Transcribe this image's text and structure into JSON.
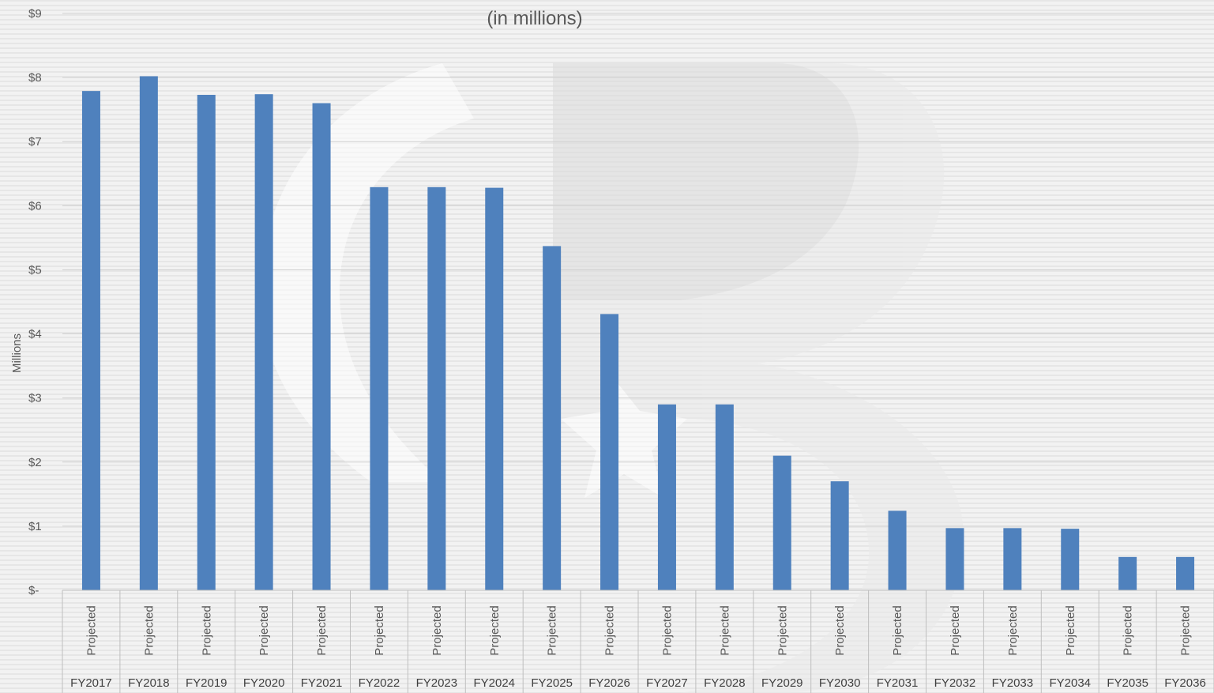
{
  "chart_data": {
    "type": "bar",
    "title": "(in millions)",
    "ylabel": "Millions",
    "xlabel": "",
    "ylim": [
      0,
      9
    ],
    "yticks": [
      {
        "value": 0,
        "label": "$-"
      },
      {
        "value": 1,
        "label": "$1"
      },
      {
        "value": 2,
        "label": "$2"
      },
      {
        "value": 3,
        "label": "$3"
      },
      {
        "value": 4,
        "label": "$4"
      },
      {
        "value": 5,
        "label": "$5"
      },
      {
        "value": 6,
        "label": "$6"
      },
      {
        "value": 7,
        "label": "$7"
      },
      {
        "value": 8,
        "label": "$8"
      },
      {
        "value": 9,
        "label": "$9"
      }
    ],
    "grid": true,
    "legend": "none",
    "bar_color": "#4f81bd",
    "categories": [
      "FY2017",
      "FY2018",
      "FY2019",
      "FY2020",
      "FY2021",
      "FY2022",
      "FY2023",
      "FY2024",
      "FY2025",
      "FY2026",
      "FY2027",
      "FY2028",
      "FY2029",
      "FY2030",
      "FY2031",
      "FY2032",
      "FY2033",
      "FY2034",
      "FY2035",
      "FY2036"
    ],
    "subcategories": [
      "Projected",
      "Projected",
      "Projected",
      "Projected",
      "Projected",
      "Projected",
      "Projected",
      "Projected",
      "Projected",
      "Projected",
      "Projected",
      "Projected",
      "Projected",
      "Projected",
      "Projected",
      "Projected",
      "Projected",
      "Projected",
      "Projected",
      "Projected"
    ],
    "values": [
      7.79,
      8.02,
      7.73,
      7.74,
      7.6,
      6.29,
      6.29,
      6.28,
      5.37,
      4.31,
      2.9,
      2.9,
      2.1,
      1.7,
      1.24,
      0.97,
      0.97,
      0.96,
      0.52,
      0.52
    ]
  }
}
